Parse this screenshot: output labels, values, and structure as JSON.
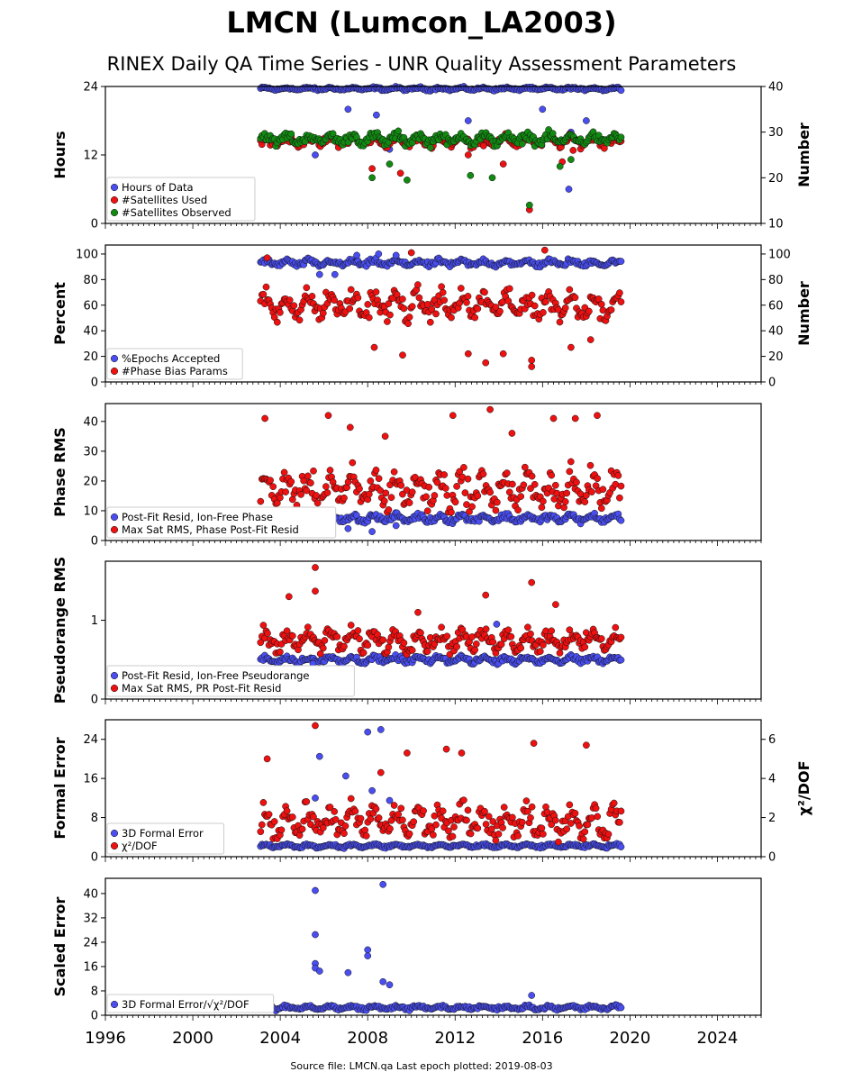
{
  "figure": {
    "title": "LMCN (Lumcon_LA2003)",
    "subtitle": "RINEX Daily QA Time Series - UNR Quality Assessment Parameters",
    "footer": "Source file: LMCN.qa Last epoch plotted: 2019-08-03",
    "x_tick_labels": [
      "1996",
      "2000",
      "2004",
      "2008",
      "2012",
      "2016",
      "2020",
      "2024"
    ],
    "x_range": [
      1996,
      2026
    ],
    "data_span": [
      2003.1,
      2019.59
    ],
    "colors": {
      "blue": "#4a4ef0",
      "red": "#ee1111",
      "green": "#128a12"
    }
  },
  "chart_data": [
    {
      "type": "scatter",
      "ylabel": "Hours",
      "ylabel_right": "Number",
      "ylim": [
        0,
        24
      ],
      "y2lim": [
        10,
        40
      ],
      "yticks": [
        0,
        12,
        24
      ],
      "y2ticks": [
        10,
        20,
        30,
        40
      ],
      "legend_placement": "lower-left",
      "series": [
        {
          "name": "Hours of Data",
          "color": "#4a4ef0",
          "axis": "left",
          "typical": 23.6,
          "spread": 0.3,
          "outliers": [
            [
              2005.6,
              12.0
            ],
            [
              2007.1,
              20.0
            ],
            [
              2008.4,
              19.0
            ],
            [
              2009.0,
              13.0
            ],
            [
              2012.6,
              18.0
            ],
            [
              2013.2,
              14.0
            ],
            [
              2015.1,
              15.5
            ],
            [
              2016.0,
              20.0
            ],
            [
              2017.2,
              6.0
            ],
            [
              2017.3,
              16.0
            ],
            [
              2018.0,
              18.0
            ]
          ]
        },
        {
          "name": "#Satellites Used",
          "color": "#ee1111",
          "axis": "right",
          "typical": 28.0,
          "spread": 1.2,
          "outliers": [
            [
              2008.2,
              22.0
            ],
            [
              2009.5,
              21.0
            ],
            [
              2012.6,
              25.0
            ],
            [
              2013.3,
              27.0
            ],
            [
              2014.2,
              23.0
            ],
            [
              2015.4,
              13.0
            ],
            [
              2016.9,
              23.5
            ],
            [
              2017.4,
              26.0
            ]
          ]
        },
        {
          "name": "#Satellites Observed",
          "color": "#128a12",
          "axis": "right",
          "typical": 28.5,
          "spread": 1.4,
          "outliers": [
            [
              2008.2,
              20.0
            ],
            [
              2009.0,
              23.0
            ],
            [
              2009.8,
              19.5
            ],
            [
              2012.7,
              20.5
            ],
            [
              2013.7,
              20.0
            ],
            [
              2015.4,
              14.0
            ],
            [
              2016.8,
              22.5
            ],
            [
              2017.3,
              24.0
            ]
          ]
        }
      ]
    },
    {
      "type": "scatter",
      "ylabel": "Percent",
      "ylabel_right": "Number",
      "ylim": [
        0,
        107
      ],
      "y2lim": [
        0,
        107
      ],
      "yticks": [
        0,
        20,
        40,
        60,
        80,
        100
      ],
      "y2ticks": [
        0,
        20,
        40,
        60,
        80,
        100
      ],
      "legend_placement": "lower-left",
      "series": [
        {
          "name": "%Epochs Accepted",
          "color": "#4a4ef0",
          "axis": "left",
          "typical": 93,
          "spread": 3,
          "outliers": [
            [
              2005.8,
              84
            ],
            [
              2006.5,
              84
            ],
            [
              2007.5,
              99
            ],
            [
              2008.5,
              100
            ],
            [
              2009.3,
              99
            ]
          ]
        },
        {
          "name": "#Phase Bias Params",
          "color": "#ee1111",
          "axis": "left",
          "typical": 60,
          "spread": 12,
          "outliers": [
            [
              2003.4,
              97
            ],
            [
              2008.3,
              27
            ],
            [
              2009.6,
              21
            ],
            [
              2012.6,
              22
            ],
            [
              2013.4,
              15
            ],
            [
              2014.2,
              22
            ],
            [
              2015.5,
              12
            ],
            [
              2015.5,
              17
            ],
            [
              2017.3,
              27
            ],
            [
              2018.2,
              33
            ],
            [
              2010.0,
              101
            ],
            [
              2016.1,
              103
            ]
          ]
        }
      ]
    },
    {
      "type": "scatter",
      "ylabel": "Phase RMS",
      "ylim": [
        0,
        46
      ],
      "yticks": [
        0,
        10,
        20,
        30,
        40
      ],
      "legend_placement": "lower-left",
      "series": [
        {
          "name": "Post-Fit Resid, Ion-Free Phase",
          "color": "#4a4ef0",
          "axis": "left",
          "typical": 7.5,
          "spread": 1.5,
          "outliers": [
            [
              2007.1,
              4
            ],
            [
              2008.2,
              3
            ],
            [
              2009.3,
              5
            ]
          ]
        },
        {
          "name": "Max Sat RMS, Phase Post-Fit Resid",
          "color": "#ee1111",
          "axis": "left",
          "typical": 17,
          "spread": 7,
          "outliers": [
            [
              2003.3,
              41
            ],
            [
              2006.2,
              42
            ],
            [
              2007.2,
              38
            ],
            [
              2011.9,
              42
            ],
            [
              2013.6,
              44
            ],
            [
              2016.5,
              41
            ],
            [
              2017.5,
              41
            ],
            [
              2018.5,
              42
            ],
            [
              2008.8,
              35
            ],
            [
              2014.6,
              36
            ]
          ]
        }
      ]
    },
    {
      "type": "scatter",
      "ylabel": "Pseudorange RMS",
      "ylim": [
        0,
        1.75
      ],
      "yticks": [
        0,
        1
      ],
      "legend_placement": "lower-left",
      "series": [
        {
          "name": "Post-Fit Resid, Ion-Free Pseudorange",
          "color": "#4a4ef0",
          "axis": "left",
          "typical": 0.5,
          "spread": 0.05,
          "outliers": [
            [
              2013.9,
              0.95
            ],
            [
              2005.5,
              0.45
            ]
          ]
        },
        {
          "name": "Max Sat RMS, PR Post-Fit Resid",
          "color": "#ee1111",
          "axis": "left",
          "typical": 0.75,
          "spread": 0.15,
          "outliers": [
            [
              2005.6,
              1.67
            ],
            [
              2005.6,
              1.37
            ],
            [
              2013.4,
              1.32
            ],
            [
              2015.5,
              1.48
            ],
            [
              2016.6,
              1.2
            ],
            [
              2004.4,
              1.3
            ],
            [
              2010.3,
              1.1
            ]
          ]
        }
      ]
    },
    {
      "type": "scatter",
      "ylabel": "Formal Error",
      "ylabel_right": "χ²/DOF",
      "ylim": [
        0,
        28
      ],
      "y2lim": [
        0,
        7
      ],
      "yticks": [
        0,
        8,
        16,
        24
      ],
      "y2ticks": [
        0,
        2,
        4,
        6
      ],
      "legend_placement": "lower-left",
      "series": [
        {
          "name": "3D Formal Error",
          "color": "#4a4ef0",
          "axis": "left",
          "typical": 2.2,
          "spread": 0.4,
          "outliers": [
            [
              2005.8,
              20.5
            ],
            [
              2007.0,
              16.5
            ],
            [
              2008.0,
              25.5
            ],
            [
              2008.2,
              13.5
            ],
            [
              2008.6,
              26.0
            ],
            [
              2009.0,
              11.5
            ],
            [
              2005.6,
              12.0
            ]
          ]
        },
        {
          "name": "χ²/DOF",
          "color": "#ee1111",
          "axis": "right",
          "typical": 1.8,
          "spread": 0.9,
          "outliers": [
            [
              2005.6,
              6.7
            ],
            [
              2008.6,
              4.3
            ],
            [
              2009.8,
              5.3
            ],
            [
              2011.6,
              5.5
            ],
            [
              2012.3,
              5.3
            ],
            [
              2015.6,
              5.8
            ],
            [
              2018.0,
              5.7
            ],
            [
              2003.4,
              5.0
            ]
          ]
        }
      ]
    },
    {
      "type": "scatter",
      "ylabel": "Scaled Error",
      "ylim": [
        0,
        45
      ],
      "yticks": [
        0,
        8,
        16,
        24,
        32,
        40
      ],
      "legend_placement": "lower-left",
      "series": [
        {
          "name": "3D Formal Error/√χ²/DOF",
          "color": "#4a4ef0",
          "axis": "left",
          "typical": 2.5,
          "spread": 0.8,
          "outliers": [
            [
              2005.6,
              41.0
            ],
            [
              2005.6,
              26.5
            ],
            [
              2005.6,
              17.0
            ],
            [
              2005.6,
              15.5
            ],
            [
              2005.8,
              14.5
            ],
            [
              2007.1,
              14.0
            ],
            [
              2008.0,
              21.5
            ],
            [
              2008.0,
              19.5
            ],
            [
              2008.7,
              43.0
            ],
            [
              2008.7,
              11.0
            ],
            [
              2009.0,
              10.0
            ],
            [
              2015.5,
              6.5
            ]
          ]
        }
      ]
    }
  ]
}
